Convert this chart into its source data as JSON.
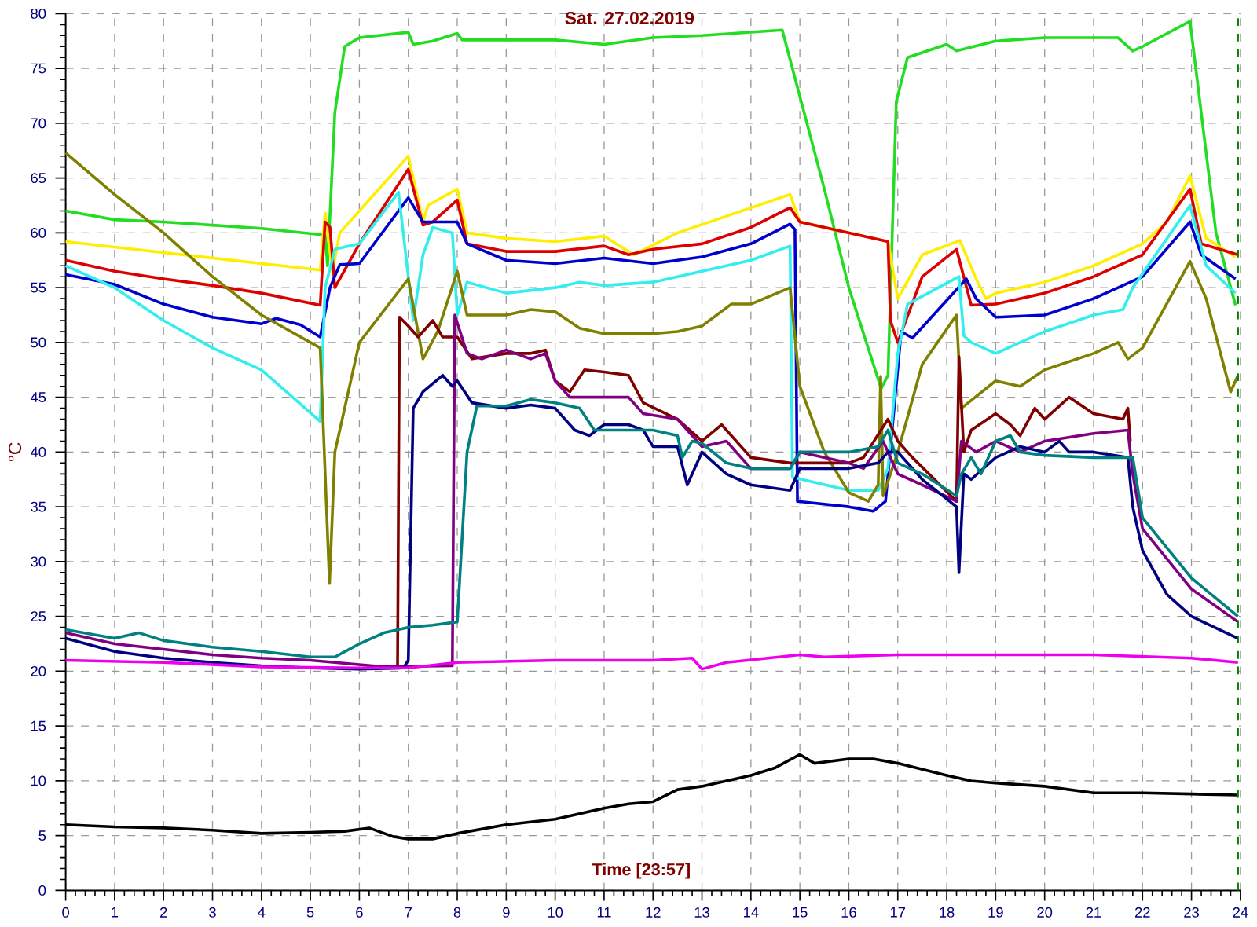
{
  "chart_data": {
    "type": "line",
    "title": "Sat. 27.02.2019",
    "xlabel": "Time [23:57]",
    "ylabel": "°C",
    "xlim": [
      0,
      24
    ],
    "ylim": [
      0,
      80
    ],
    "xticks": [
      0,
      1,
      2,
      3,
      4,
      5,
      6,
      7,
      8,
      9,
      10,
      11,
      12,
      13,
      14,
      15,
      16,
      17,
      18,
      19,
      20,
      21,
      22,
      23,
      24
    ],
    "yticks": [
      0,
      5,
      10,
      15,
      20,
      25,
      30,
      35,
      40,
      45,
      50,
      55,
      60,
      65,
      70,
      75,
      80
    ],
    "grid": true,
    "line_style": "solid",
    "ref_lines": [
      {
        "axis": "x",
        "value": 23.95,
        "color": "#008000",
        "line_style": "dashed"
      }
    ],
    "series": [
      {
        "color": "#22dd22",
        "x": [
          0,
          1,
          2,
          3,
          4,
          5.3,
          5.35,
          5.5,
          5.7,
          6,
          7,
          7.1,
          7.5,
          8,
          8.1,
          10,
          11,
          12,
          13,
          14.64,
          15.5,
          16,
          16.66,
          16.8,
          16.97,
          17.2,
          18,
          18.2,
          19,
          20,
          21.5,
          21.8,
          22,
          22.97,
          23.5,
          23.9
        ],
        "values": [
          62,
          61.2,
          61,
          60.7,
          60.4,
          59.8,
          57,
          71,
          77,
          77.8,
          78.3,
          77.2,
          77.5,
          78.2,
          77.6,
          77.6,
          77.2,
          77.8,
          78,
          78.5,
          64,
          55,
          45.8,
          47,
          72,
          76,
          77.2,
          76.6,
          77.5,
          77.8,
          77.8,
          76.6,
          77,
          79.3,
          60,
          53.4
        ]
      },
      {
        "color": "#ffee00",
        "x": [
          0,
          5.2,
          5.3,
          5.45,
          5.6,
          7,
          7.3,
          7.4,
          8,
          8.2,
          9,
          10,
          11,
          11.6,
          12.5,
          14.8,
          15,
          16.8,
          17,
          17.5,
          18.27,
          18.6,
          18.8,
          19,
          20,
          21,
          22,
          22.5,
          22.97,
          23.3,
          23.9
        ],
        "values": [
          59.2,
          56.6,
          61.8,
          56.5,
          60,
          67,
          61,
          62.5,
          64,
          60,
          59.5,
          59.2,
          59.7,
          58,
          60,
          63.5,
          61,
          59.2,
          54,
          58,
          59.3,
          55.8,
          54,
          54.5,
          55.5,
          57,
          59,
          61,
          65.2,
          59.5,
          57.8
        ]
      },
      {
        "color": "#dd0000",
        "x": [
          0,
          1,
          2,
          3,
          4,
          5.2,
          5.3,
          5.4,
          5.5,
          6,
          7,
          7.3,
          7.5,
          8,
          8.2,
          9,
          10,
          11,
          11.5,
          12,
          13,
          14,
          14.8,
          15,
          16.8,
          16.85,
          17,
          17.5,
          18.2,
          18.5,
          19,
          20,
          21,
          22,
          22.97,
          23.2,
          23.95
        ],
        "values": [
          57.5,
          56.5,
          55.8,
          55.2,
          54.5,
          53.4,
          61,
          60.5,
          55,
          59,
          65.8,
          60.7,
          61,
          63,
          59,
          58.3,
          58.3,
          58.8,
          58,
          58.5,
          59,
          60.5,
          62.3,
          61,
          59.2,
          52,
          50,
          56,
          58.5,
          53.4,
          53.5,
          54.5,
          56,
          58,
          64,
          59,
          58
        ]
      },
      {
        "color": "#0000cc",
        "x": [
          0,
          1,
          2,
          3,
          4,
          4.3,
          4.8,
          5.2,
          5.4,
          5.6,
          6,
          7,
          7.3,
          8,
          8.2,
          9,
          10,
          11,
          12,
          13,
          14,
          14.8,
          14.9,
          14.95,
          16,
          16.5,
          16.75,
          17.07,
          17.3,
          18.4,
          18.6,
          19,
          20,
          21,
          22,
          22.97,
          23.2,
          23.9
        ],
        "values": [
          56.2,
          55.3,
          53.5,
          52.3,
          51.7,
          52.2,
          51.6,
          50.5,
          55,
          57.1,
          57.2,
          63.2,
          61,
          61,
          59,
          57.5,
          57.2,
          57.7,
          57.2,
          57.8,
          59,
          60.8,
          60.3,
          35.5,
          35,
          34.6,
          35.5,
          51,
          50.4,
          55.8,
          54,
          52.3,
          52.5,
          54,
          56,
          61,
          58,
          55.8
        ]
      },
      {
        "color": "#33eeee",
        "x": [
          0,
          1,
          2,
          3,
          4,
          5.2,
          5.3,
          5.5,
          6,
          6.8,
          7,
          7.1,
          7.3,
          7.5,
          7.9,
          8,
          8.2,
          9,
          10,
          10.5,
          11,
          12,
          13,
          14,
          14.8,
          14.85,
          16,
          16.6,
          16.8,
          17,
          17.2,
          18.25,
          18.35,
          18.5,
          19,
          19.5,
          20,
          21,
          21.6,
          21.8,
          22.97,
          23.3,
          23.9
        ],
        "values": [
          57,
          55,
          52,
          49.5,
          47.5,
          42.8,
          55,
          58.5,
          59,
          63.7,
          56,
          52,
          58,
          60.5,
          60,
          52.5,
          55.5,
          54.5,
          55,
          55.5,
          55.2,
          55.5,
          56.5,
          57.5,
          58.8,
          37.7,
          36.5,
          36.5,
          38.5,
          49,
          53.5,
          56,
          50.6,
          50,
          49,
          50,
          51,
          52.5,
          53,
          55,
          62.5,
          57,
          54.5
        ]
      },
      {
        "color": "#808000",
        "x": [
          0,
          1,
          2,
          3,
          4,
          5.2,
          5.39,
          5.5,
          6,
          7,
          7.3,
          7.6,
          8,
          8.2,
          9,
          9.5,
          10,
          10.5,
          11,
          12,
          12.5,
          13,
          13.6,
          14,
          14.8,
          15,
          15.5,
          16,
          16.4,
          16.6,
          16.65,
          16.7,
          17,
          17.5,
          18.2,
          18.3,
          19,
          19.5,
          20,
          21,
          21.5,
          21.7,
          22,
          22.97,
          23.3,
          23.8,
          23.95
        ],
        "values": [
          67.3,
          63.5,
          60,
          56,
          52.5,
          49.5,
          28,
          40,
          50,
          55.8,
          48.5,
          51,
          56.5,
          52.5,
          52.5,
          53,
          52.8,
          51.3,
          50.8,
          50.8,
          51,
          51.5,
          53.5,
          53.5,
          55,
          46,
          40,
          36.3,
          35.5,
          37,
          46.9,
          36,
          40,
          48,
          52.5,
          44,
          46.5,
          46,
          47.5,
          49,
          50,
          48.5,
          49.5,
          57.4,
          54,
          45.5,
          47
        ]
      },
      {
        "color": "#800000",
        "x": [
          6.78,
          6.82,
          7,
          7.2,
          7.5,
          7.7,
          8,
          8.3,
          9,
          9.5,
          9.8,
          10,
          10.3,
          10.6,
          11,
          11.5,
          11.8,
          12.5,
          13,
          13.4,
          14,
          14.8,
          15,
          16,
          16.3,
          16.8,
          17,
          17.3,
          18.2,
          18.25,
          18.35,
          18.5,
          19,
          19.3,
          19.5,
          19.8,
          20,
          20.5,
          21,
          21.6,
          21.7,
          21.75
        ],
        "values": [
          20.3,
          52.3,
          51.5,
          50.5,
          52,
          50.5,
          50.5,
          48.5,
          49,
          49,
          49.3,
          46.5,
          45.5,
          47.5,
          47.3,
          47,
          44.5,
          43,
          41,
          42.5,
          39.5,
          39,
          39,
          39,
          39.5,
          43,
          41,
          39.5,
          35.5,
          48.7,
          40,
          42,
          43.5,
          42.5,
          41.5,
          44,
          43,
          45,
          43.5,
          43,
          44,
          41
        ]
      },
      {
        "color": "#800080",
        "x": [
          0,
          1,
          2,
          3,
          4,
          5,
          5.5,
          6.5,
          7.9,
          7.95,
          8.2,
          8.5,
          9,
          9.5,
          9.8,
          10,
          10.3,
          11,
          11.5,
          11.8,
          12.5,
          13,
          13.5,
          14,
          14.8,
          15,
          16,
          16.3,
          16.7,
          17,
          17.5,
          18.2,
          18.3,
          18.6,
          19,
          19.5,
          20,
          21,
          21.7,
          21.8,
          22,
          23,
          23.95
        ],
        "values": [
          23.5,
          22.5,
          22,
          21.5,
          21.2,
          21,
          20.8,
          20.4,
          20.5,
          52.5,
          49,
          48.5,
          49.3,
          48.5,
          49,
          46.5,
          45,
          45,
          45,
          43.5,
          43,
          40.5,
          41,
          38.5,
          38.5,
          40,
          39,
          38.5,
          41,
          38,
          37,
          35.5,
          41,
          40,
          41,
          40,
          41,
          41.7,
          42,
          38,
          33,
          27.5,
          24.5
        ]
      },
      {
        "color": "#000080",
        "x": [
          0,
          1,
          2,
          3,
          4,
          5,
          6,
          6.9,
          7,
          7.1,
          7.3,
          7.7,
          7.9,
          8,
          8.3,
          9,
          9.5,
          10,
          10.4,
          10.7,
          11,
          11.5,
          11.8,
          12,
          12.5,
          12.7,
          13,
          13.5,
          14,
          14.8,
          15,
          16,
          16.6,
          16.8,
          17,
          17.5,
          18.2,
          18.25,
          18.35,
          18.5,
          19,
          19.5,
          20,
          20.3,
          20.5,
          21,
          21.7,
          21.8,
          22,
          22.5,
          23,
          23.95
        ],
        "values": [
          23,
          21.8,
          21.2,
          20.8,
          20.5,
          20.3,
          20.2,
          20.3,
          21,
          44,
          45.5,
          47,
          46,
          46.5,
          44.5,
          44,
          44.3,
          44,
          42,
          41.5,
          42.5,
          42.5,
          42,
          40.5,
          40.5,
          37,
          40,
          38,
          37,
          36.5,
          38.5,
          38.5,
          39,
          40,
          40,
          37.5,
          35,
          29,
          38,
          37.5,
          39.5,
          40.5,
          40,
          41,
          40,
          40,
          39.5,
          35,
          31,
          27,
          25,
          23
        ]
      },
      {
        "color": "#008080",
        "x": [
          0,
          1,
          1.5,
          2,
          3,
          4,
          5,
          5.5,
          6,
          6.5,
          7,
          7.5,
          8,
          8.2,
          8.4,
          9,
          9.5,
          10,
          10.5,
          10.8,
          11.5,
          12,
          12.5,
          12.6,
          12.8,
          13,
          13.5,
          14,
          14.8,
          15,
          16,
          16.6,
          16.8,
          17,
          17.5,
          18.2,
          18.3,
          18.5,
          18.7,
          19,
          19.3,
          19.5,
          20,
          21,
          21.8,
          22,
          23,
          23.95
        ],
        "values": [
          23.8,
          23,
          23.5,
          22.8,
          22.2,
          21.8,
          21.3,
          21.3,
          22.5,
          23.5,
          24,
          24.2,
          24.5,
          40,
          44.2,
          44.2,
          44.8,
          44.5,
          44,
          42,
          42,
          42,
          41.5,
          39.5,
          41,
          40.8,
          39,
          38.5,
          38.5,
          40,
          40,
          40.5,
          42,
          39,
          38,
          36,
          38,
          39.5,
          38,
          41,
          41.5,
          40,
          39.7,
          39.5,
          39.5,
          34,
          28.5,
          25
        ]
      },
      {
        "color": "#ee00ee",
        "x": [
          0,
          2,
          4,
          6,
          7,
          8,
          10,
          12,
          12.8,
          13,
          13.5,
          15,
          15.5,
          17,
          19,
          21,
          23,
          23.95
        ],
        "values": [
          21,
          20.8,
          20.4,
          20.3,
          20.3,
          20.8,
          21,
          21,
          21.2,
          20.2,
          20.8,
          21.5,
          21.3,
          21.5,
          21.5,
          21.5,
          21.2,
          20.8
        ]
      },
      {
        "color": "#000000",
        "x": [
          0,
          1,
          2,
          3,
          4,
          5,
          5.7,
          6.2,
          6.7,
          7,
          7.5,
          8,
          9,
          10,
          11,
          11.5,
          12,
          12.5,
          13,
          14,
          14.5,
          15,
          15.3,
          16,
          16.5,
          17,
          18,
          18.5,
          19,
          20,
          21,
          22,
          23,
          23.95
        ],
        "values": [
          6,
          5.8,
          5.7,
          5.5,
          5.2,
          5.3,
          5.4,
          5.7,
          4.9,
          4.7,
          4.7,
          5.2,
          6,
          6.5,
          7.5,
          7.9,
          8.1,
          9.2,
          9.5,
          10.5,
          11.2,
          12.4,
          11.6,
          12,
          12,
          11.6,
          10.5,
          10,
          9.8,
          9.5,
          8.9,
          8.9,
          8.8,
          8.7
        ]
      }
    ]
  }
}
